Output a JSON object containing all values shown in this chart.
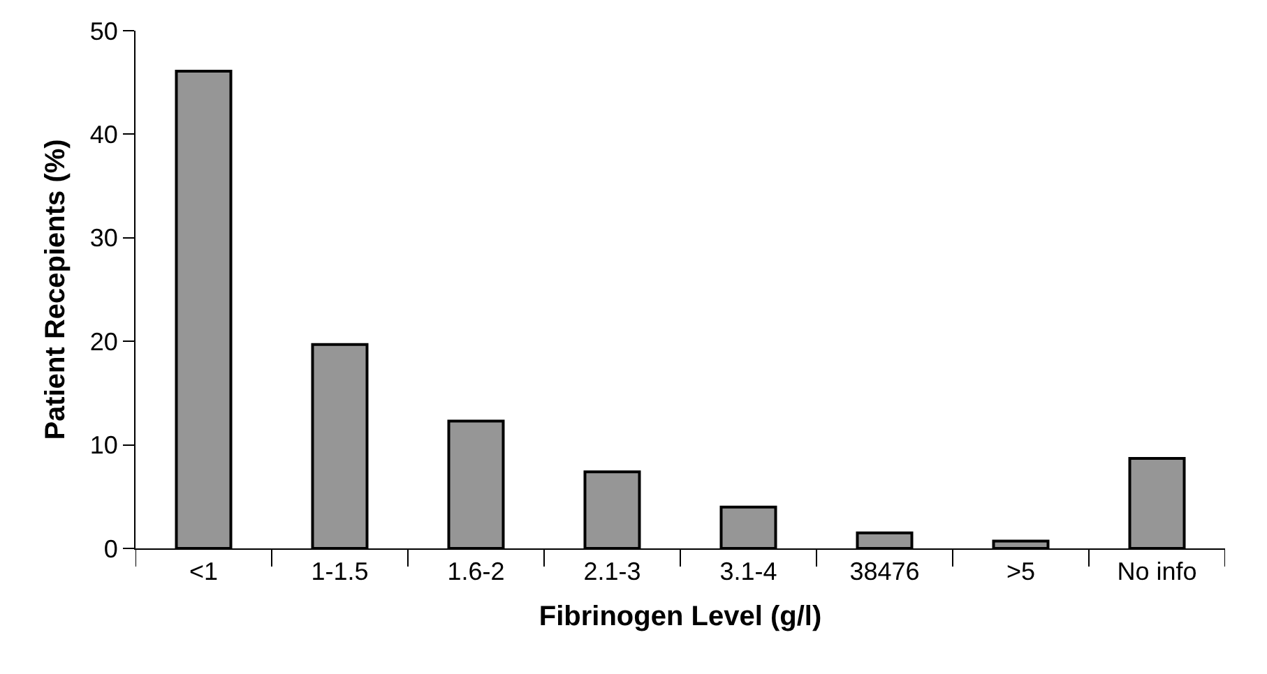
{
  "chart_data": {
    "type": "bar",
    "xlabel": "Fibrinogen Level (g/l)",
    "ylabel": "Patient Recepients (%)",
    "categories": [
      "<1",
      "1-1.5",
      "1.6-2",
      "2.1-3",
      "3.1-4",
      "38476",
      ">5",
      "No info"
    ],
    "values": [
      46.1,
      19.7,
      12.3,
      7.4,
      4.0,
      1.5,
      0.7,
      8.7
    ],
    "color": "#969696",
    "ylim": [
      0,
      50
    ],
    "yticks": [
      0,
      10,
      20,
      30,
      40,
      50
    ]
  }
}
